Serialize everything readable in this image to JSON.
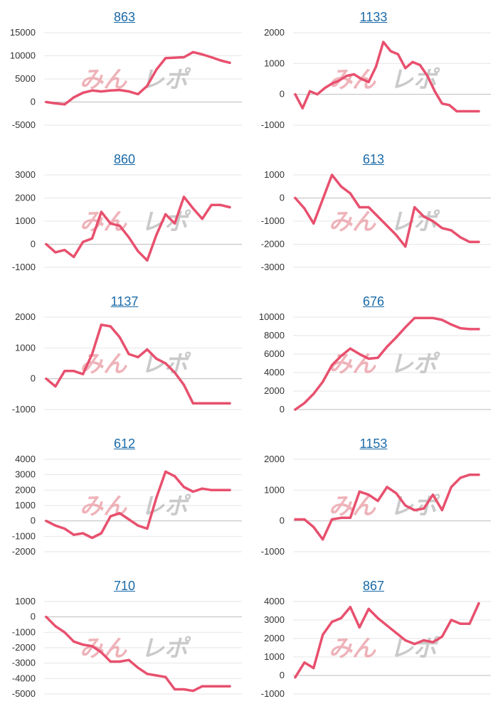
{
  "colors": {
    "line": "#e8506e",
    "grid": "#e6e6e6",
    "zero": "#bdbdbd",
    "title": "#1a6aa8"
  },
  "watermark": {
    "part1": "みん",
    "part2": "レポ"
  },
  "chart_data": [
    {
      "type": "line",
      "title": "863",
      "ylim": [
        -5000,
        15000
      ],
      "yticks": [
        15000,
        10000,
        5000,
        0,
        -5000
      ],
      "x": [
        0,
        5,
        10,
        15,
        20,
        25,
        30,
        35,
        40,
        45,
        50,
        55,
        60,
        65,
        70,
        75,
        80,
        85,
        90,
        95,
        100
      ],
      "values": [
        0,
        -300,
        -500,
        1000,
        2000,
        2500,
        2300,
        2500,
        2600,
        2300,
        1700,
        3500,
        7000,
        9500,
        9600,
        9700,
        10800,
        10300,
        9700,
        9000,
        8500
      ]
    },
    {
      "type": "line",
      "title": "1133",
      "ylim": [
        -1000,
        2000
      ],
      "yticks": [
        2000,
        1000,
        0,
        -1000
      ],
      "x": [
        0,
        4,
        8,
        12,
        16,
        20,
        24,
        28,
        32,
        36,
        40,
        44,
        48,
        52,
        56,
        60,
        64,
        68,
        72,
        76,
        80,
        84,
        88,
        92,
        96,
        100
      ],
      "values": [
        0,
        -450,
        100,
        0,
        200,
        350,
        450,
        600,
        650,
        500,
        400,
        900,
        1700,
        1400,
        1300,
        850,
        1050,
        950,
        600,
        100,
        -300,
        -350,
        -550,
        -550,
        -550,
        -550
      ]
    },
    {
      "type": "line",
      "title": "860",
      "ylim": [
        -1000,
        3000
      ],
      "yticks": [
        3000,
        2000,
        1000,
        0,
        -1000
      ],
      "x": [
        0,
        5,
        10,
        15,
        20,
        25,
        30,
        35,
        40,
        45,
        50,
        55,
        60,
        65,
        70,
        75,
        80,
        85,
        90,
        95,
        100
      ],
      "values": [
        0,
        -350,
        -250,
        -550,
        100,
        250,
        1400,
        900,
        800,
        300,
        -300,
        -700,
        400,
        1300,
        900,
        2050,
        1550,
        1100,
        1700,
        1700,
        1600
      ]
    },
    {
      "type": "line",
      "title": "613",
      "ylim": [
        -3000,
        1000
      ],
      "yticks": [
        1000,
        0,
        -1000,
        -2000,
        -3000
      ],
      "x": [
        0,
        5,
        10,
        15,
        20,
        25,
        30,
        35,
        40,
        45,
        50,
        55,
        60,
        65,
        70,
        75,
        80,
        85,
        90,
        95,
        100
      ],
      "values": [
        0,
        -450,
        -1100,
        -50,
        1000,
        500,
        200,
        -400,
        -400,
        -800,
        -1200,
        -1600,
        -2100,
        -400,
        -800,
        -1000,
        -1300,
        -1400,
        -1700,
        -1900,
        -1900
      ]
    },
    {
      "type": "line",
      "title": "1137",
      "ylim": [
        -1000,
        2000
      ],
      "yticks": [
        2000,
        1000,
        0,
        -1000
      ],
      "x": [
        0,
        5,
        10,
        15,
        20,
        25,
        30,
        35,
        40,
        45,
        50,
        55,
        60,
        65,
        70,
        75,
        80,
        85,
        90,
        95,
        100
      ],
      "values": [
        0,
        -250,
        250,
        250,
        150,
        800,
        1750,
        1700,
        1350,
        800,
        700,
        950,
        650,
        500,
        200,
        -200,
        -800,
        -800,
        -800,
        -800,
        -800
      ]
    },
    {
      "type": "line",
      "title": "676",
      "ylim": [
        0,
        10000
      ],
      "yticks": [
        10000,
        8000,
        6000,
        4000,
        2000,
        0
      ],
      "x": [
        0,
        5,
        10,
        15,
        20,
        25,
        30,
        35,
        40,
        45,
        50,
        55,
        60,
        65,
        70,
        75,
        80,
        85,
        90,
        95,
        100
      ],
      "values": [
        0,
        700,
        1700,
        3000,
        4800,
        5800,
        6600,
        6000,
        5500,
        5600,
        6800,
        7800,
        8900,
        9900,
        9900,
        9900,
        9700,
        9200,
        8800,
        8700,
        8700
      ]
    },
    {
      "type": "line",
      "title": "612",
      "ylim": [
        -2000,
        4000
      ],
      "yticks": [
        4000,
        3000,
        2000,
        1000,
        0,
        -1000,
        -2000
      ],
      "x": [
        0,
        5,
        10,
        15,
        20,
        25,
        30,
        35,
        40,
        45,
        50,
        55,
        60,
        65,
        70,
        75,
        80,
        85,
        90,
        95,
        100
      ],
      "values": [
        0,
        -300,
        -500,
        -900,
        -800,
        -1100,
        -800,
        300,
        500,
        100,
        -300,
        -500,
        1500,
        3200,
        2900,
        2200,
        1900,
        2100,
        2000,
        2000,
        2000
      ]
    },
    {
      "type": "line",
      "title": "1153",
      "ylim": [
        -1000,
        2000
      ],
      "yticks": [
        2000,
        1000,
        0,
        -1000
      ],
      "x": [
        0,
        5,
        10,
        15,
        20,
        25,
        30,
        35,
        40,
        45,
        50,
        55,
        60,
        65,
        70,
        75,
        80,
        85,
        90,
        95,
        100
      ],
      "values": [
        50,
        50,
        -200,
        -600,
        50,
        100,
        100,
        950,
        850,
        650,
        1100,
        900,
        500,
        350,
        400,
        850,
        350,
        1100,
        1400,
        1500,
        1500
      ]
    },
    {
      "type": "line",
      "title": "710",
      "ylim": [
        -5000,
        1000
      ],
      "yticks": [
        1000,
        0,
        -1000,
        -2000,
        -3000,
        -4000,
        -5000
      ],
      "x": [
        0,
        5,
        10,
        15,
        20,
        25,
        30,
        35,
        40,
        45,
        50,
        55,
        60,
        65,
        70,
        75,
        80,
        85,
        90,
        95,
        100
      ],
      "values": [
        0,
        -600,
        -1000,
        -1600,
        -1800,
        -1900,
        -2300,
        -2900,
        -2900,
        -2800,
        -3300,
        -3700,
        -3800,
        -3900,
        -4700,
        -4700,
        -4800,
        -4500,
        -4500,
        -4500,
        -4500
      ]
    },
    {
      "type": "line",
      "title": "867",
      "ylim": [
        -1000,
        4000
      ],
      "yticks": [
        4000,
        3000,
        2000,
        1000,
        0,
        -1000
      ],
      "x": [
        0,
        5,
        10,
        15,
        20,
        25,
        30,
        35,
        40,
        45,
        50,
        55,
        60,
        65,
        70,
        75,
        80,
        85,
        90,
        95,
        100
      ],
      "values": [
        -100,
        700,
        400,
        2200,
        2900,
        3100,
        3700,
        2600,
        3600,
        3100,
        2700,
        2300,
        1900,
        1700,
        1900,
        1800,
        2100,
        3000,
        2800,
        2800,
        3900
      ]
    }
  ]
}
